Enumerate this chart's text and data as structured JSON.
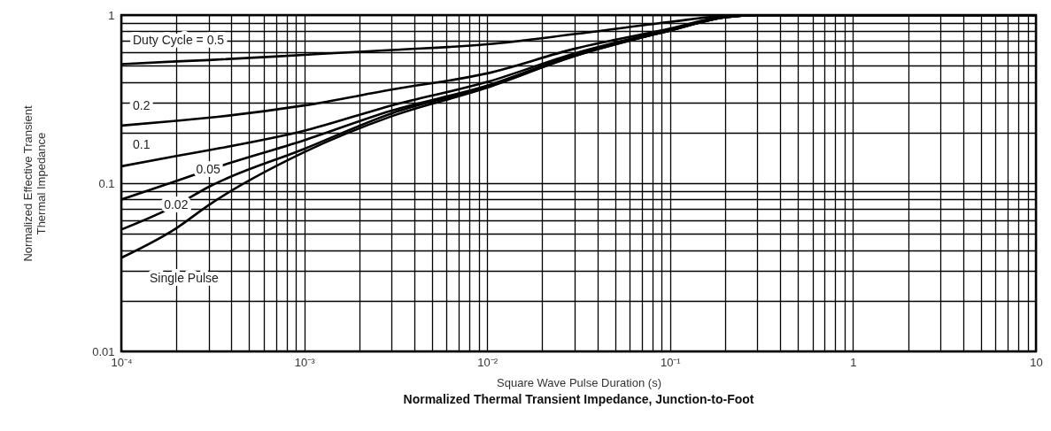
{
  "chart_data": {
    "type": "line",
    "title": "Normalized Thermal Transient Impedance, Junction-to-Foot",
    "xlabel": "Square Wave Pulse Duration (s)",
    "ylabel": "Normalized Effective Transient\nThermal Impedance",
    "log": "xy",
    "grid": true,
    "xlim": [
      0.0001,
      10
    ],
    "ylim": [
      0.01,
      1
    ],
    "xticks": [
      {
        "value": 0.0001,
        "label": "10⁻⁴"
      },
      {
        "value": 0.0002,
        "label": null
      },
      {
        "value": 0.0003,
        "label": null
      },
      {
        "value": 0.0004,
        "label": null
      },
      {
        "value": 0.0005,
        "label": null
      },
      {
        "value": 0.0006,
        "label": null
      },
      {
        "value": 0.0007,
        "label": null
      },
      {
        "value": 0.0008,
        "label": null
      },
      {
        "value": 0.0009,
        "label": null
      },
      {
        "value": 0.001,
        "label": "10⁻³"
      },
      {
        "value": 0.002,
        "label": null
      },
      {
        "value": 0.003,
        "label": null
      },
      {
        "value": 0.004,
        "label": null
      },
      {
        "value": 0.005,
        "label": null
      },
      {
        "value": 0.006,
        "label": null
      },
      {
        "value": 0.007,
        "label": null
      },
      {
        "value": 0.008,
        "label": null
      },
      {
        "value": 0.009,
        "label": null
      },
      {
        "value": 0.01,
        "label": "10⁻²"
      },
      {
        "value": 0.02,
        "label": null
      },
      {
        "value": 0.03,
        "label": null
      },
      {
        "value": 0.04,
        "label": null
      },
      {
        "value": 0.05,
        "label": null
      },
      {
        "value": 0.06,
        "label": null
      },
      {
        "value": 0.07,
        "label": null
      },
      {
        "value": 0.08,
        "label": null
      },
      {
        "value": 0.09,
        "label": null
      },
      {
        "value": 0.1,
        "label": "10⁻¹"
      },
      {
        "value": 0.2,
        "label": null
      },
      {
        "value": 0.3,
        "label": null
      },
      {
        "value": 0.4,
        "label": null
      },
      {
        "value": 0.5,
        "label": null
      },
      {
        "value": 0.6,
        "label": null
      },
      {
        "value": 0.7,
        "label": null
      },
      {
        "value": 0.8,
        "label": null
      },
      {
        "value": 0.9,
        "label": null
      },
      1,
      {
        "value": 2,
        "label": null
      },
      {
        "value": 3,
        "label": null
      },
      {
        "value": 4,
        "label": null
      },
      {
        "value": 5,
        "label": null
      },
      {
        "value": 6,
        "label": null
      },
      {
        "value": 7,
        "label": null
      },
      {
        "value": 8,
        "label": null
      },
      {
        "value": 9,
        "label": null
      },
      10
    ],
    "yticks": [
      0.01,
      {
        "value": 0.02,
        "label": null
      },
      {
        "value": 0.03,
        "label": null
      },
      {
        "value": 0.04,
        "label": null
      },
      {
        "value": 0.05,
        "label": null
      },
      {
        "value": 0.06,
        "label": null
      },
      {
        "value": 0.07,
        "label": null
      },
      {
        "value": 0.08,
        "label": null
      },
      {
        "value": 0.09,
        "label": null
      },
      0.1,
      {
        "value": 0.2,
        "label": null
      },
      {
        "value": 0.3,
        "label": null
      },
      {
        "value": 0.4,
        "label": null
      },
      {
        "value": 0.5,
        "label": null
      },
      {
        "value": 0.6,
        "label": null
      },
      {
        "value": 0.7,
        "label": null
      },
      {
        "value": 0.8,
        "label": null
      },
      {
        "value": 0.9,
        "label": null
      },
      1
    ],
    "x": [
      0.0001,
      0.0002,
      0.0003,
      0.001,
      0.003,
      0.01,
      0.03,
      0.1,
      0.2,
      0.3,
      1,
      10
    ],
    "series": [
      {
        "name": "Duty Cycle = 0.5",
        "color": "#000000",
        "values": [
          0.51,
          0.53,
          0.54,
          0.58,
          0.62,
          0.67,
          0.77,
          0.91,
          0.99,
          1,
          1,
          1
        ]
      },
      {
        "name": "0.2",
        "color": "#000000",
        "values": [
          0.22,
          0.235,
          0.245,
          0.29,
          0.36,
          0.45,
          0.63,
          0.83,
          0.98,
          1,
          1,
          1
        ]
      },
      {
        "name": "0.1",
        "color": "#000000",
        "values": [
          0.126,
          0.145,
          0.157,
          0.205,
          0.29,
          0.4,
          0.59,
          0.82,
          0.97,
          1,
          1,
          1
        ]
      },
      {
        "name": "0.05",
        "color": "#000000",
        "values": [
          0.08,
          0.103,
          0.12,
          0.18,
          0.27,
          0.38,
          0.58,
          0.81,
          0.97,
          1,
          1,
          1
        ]
      },
      {
        "name": "0.02",
        "color": "#000000",
        "values": [
          0.053,
          0.074,
          0.095,
          0.16,
          0.26,
          0.375,
          0.57,
          0.81,
          0.97,
          1,
          1,
          1
        ]
      },
      {
        "name": "Single Pulse",
        "color": "#000000",
        "values": [
          0.036,
          0.054,
          0.074,
          0.153,
          0.25,
          0.37,
          0.57,
          0.81,
          0.97,
          1,
          1,
          1
        ]
      }
    ]
  }
}
